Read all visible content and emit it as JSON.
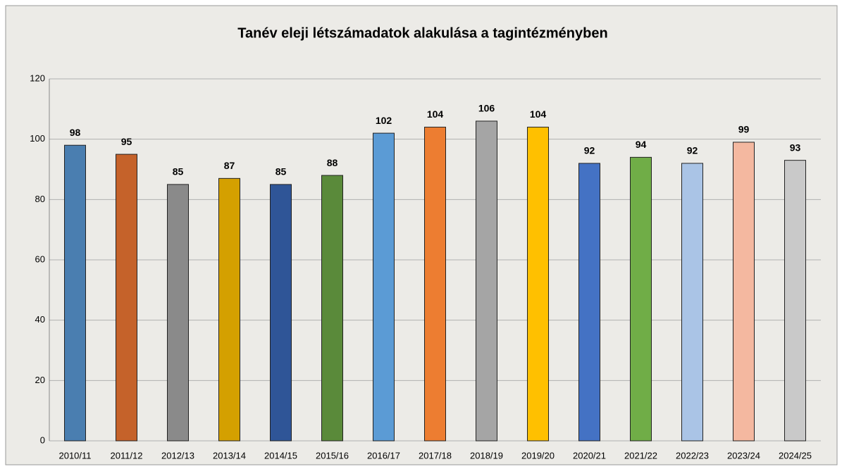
{
  "chart_data": {
    "type": "bar",
    "title": "Tanév eleji létszámadatok alakulása a tagintézményben",
    "categories": [
      "2010/11",
      "2011/12",
      "2012/13",
      "2013/14",
      "2014/15",
      "2015/16",
      "2016/17",
      "2017/18",
      "2018/19",
      "2019/20",
      "2020/21",
      "2021/22",
      "2022/23",
      "2023/24",
      "2024/25"
    ],
    "values": [
      98,
      95,
      85,
      87,
      85,
      88,
      102,
      104,
      106,
      104,
      92,
      94,
      92,
      99,
      93
    ],
    "colors": [
      "#4a7eb0",
      "#c5622a",
      "#8a8a8a",
      "#d4a000",
      "#2f5597",
      "#5a8a3a",
      "#5b9bd5",
      "#ed7d31",
      "#a5a5a5",
      "#ffc000",
      "#4472c4",
      "#70ad47",
      "#aac4e6",
      "#f4b8a0",
      "#c9c9c9"
    ],
    "ylim": [
      0,
      120
    ],
    "yticks": [
      0,
      20,
      40,
      60,
      80,
      100,
      120
    ],
    "grid": true
  }
}
